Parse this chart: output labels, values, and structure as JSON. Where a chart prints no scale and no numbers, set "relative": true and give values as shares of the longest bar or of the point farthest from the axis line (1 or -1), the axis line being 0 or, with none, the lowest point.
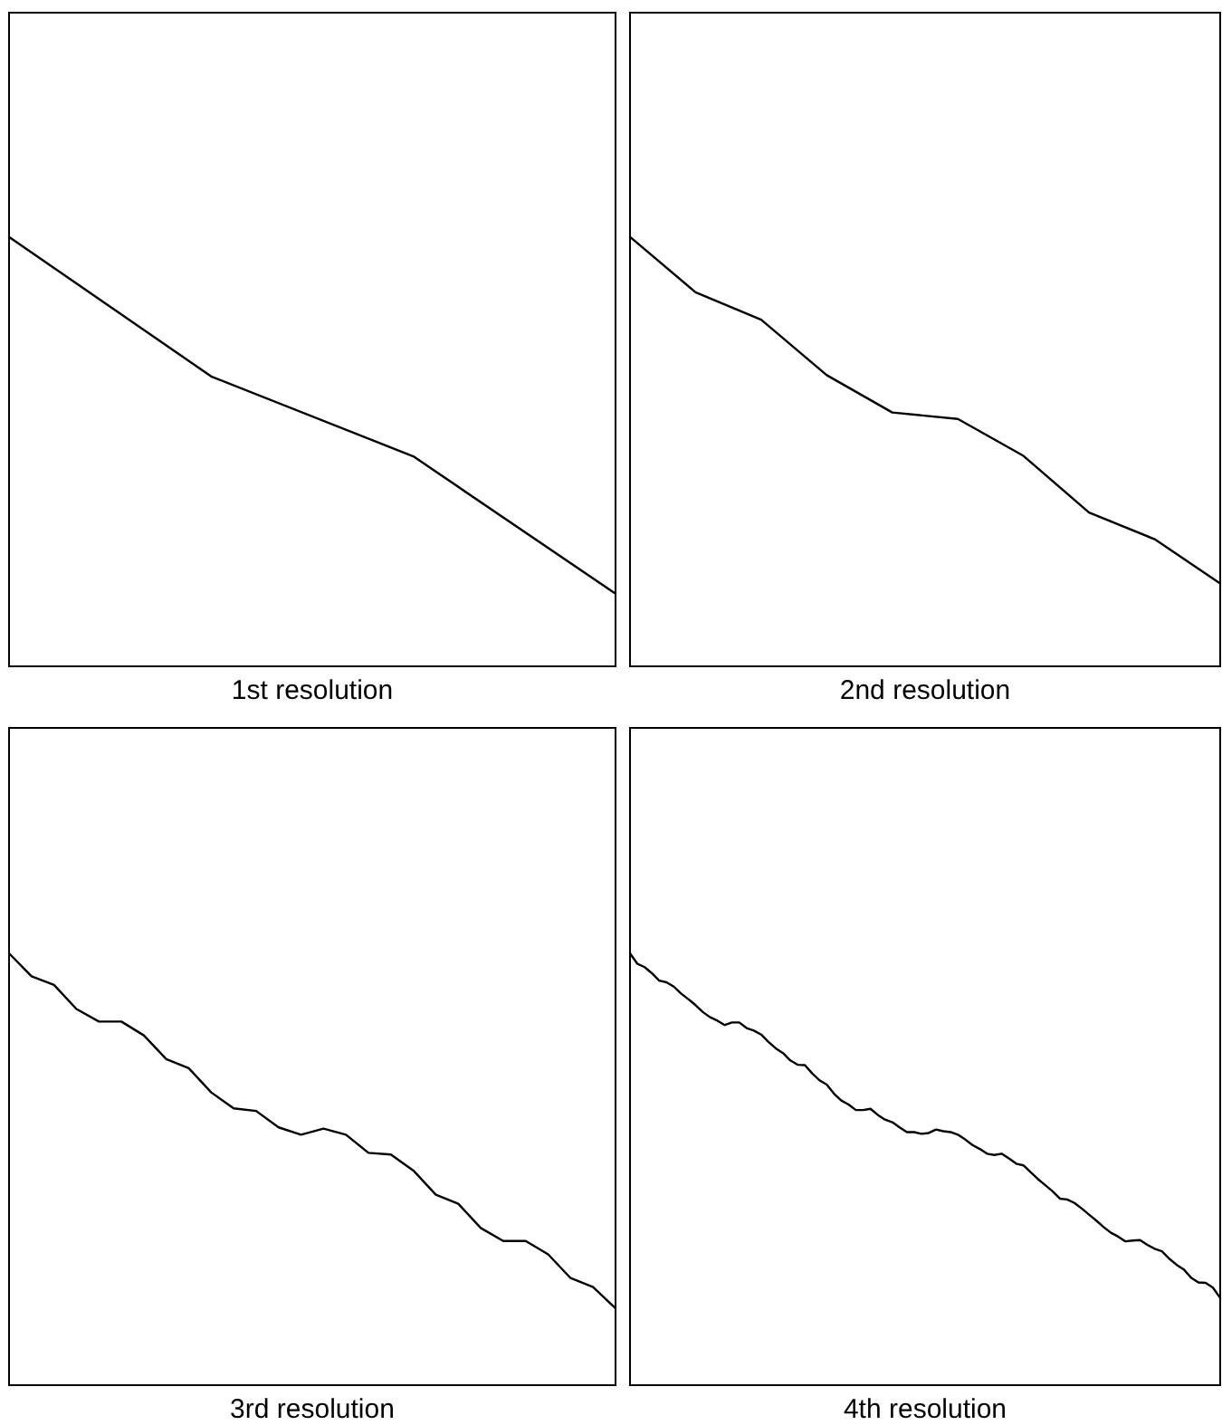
{
  "chart_data": [
    {
      "type": "line",
      "xlabel": "1st resolution",
      "relative": true,
      "categories": [
        null,
        null,
        null,
        null
      ],
      "series": [
        {
          "color": "#000000",
          "values": [
            1,
            0.675,
            0.489,
            0.169
          ]
        }
      ]
    },
    {
      "type": "line",
      "xlabel": "2nd resolution",
      "relative": true,
      "categories": [
        null,
        null,
        null,
        null,
        null,
        null,
        null,
        null,
        null,
        null
      ],
      "series": [
        {
          "color": "#000000",
          "values": [
            1,
            0.871,
            0.807,
            0.678,
            0.591,
            0.576,
            0.49,
            0.358,
            0.296,
            0.193
          ]
        }
      ]
    },
    {
      "type": "line",
      "xlabel": "3rd resolution",
      "relative": true,
      "categories": [
        null,
        null,
        null,
        null,
        null,
        null,
        null,
        null,
        null,
        null,
        null,
        null,
        null,
        null,
        null,
        null,
        null,
        null,
        null,
        null,
        null,
        null,
        null,
        null,
        null,
        null,
        null,
        null
      ],
      "series": [
        {
          "color": "#000000",
          "values": [
            1,
            0.947,
            0.927,
            0.871,
            0.842,
            0.842,
            0.81,
            0.755,
            0.734,
            0.678,
            0.641,
            0.635,
            0.597,
            0.58,
            0.594,
            0.58,
            0.538,
            0.534,
            0.497,
            0.441,
            0.42,
            0.364,
            0.334,
            0.334,
            0.303,
            0.248,
            0.227,
            0.178
          ]
        }
      ]
    },
    {
      "type": "line",
      "xlabel": "4th resolution",
      "relative": true,
      "categories": [
        null,
        null,
        null,
        null,
        null,
        null,
        null,
        null,
        null,
        null,
        null,
        null,
        null,
        null,
        null,
        null,
        null,
        null,
        null,
        null,
        null,
        null,
        null,
        null,
        null,
        null,
        null,
        null,
        null,
        null,
        null,
        null,
        null,
        null,
        null,
        null,
        null,
        null,
        null,
        null,
        null,
        null,
        null,
        null,
        null,
        null,
        null,
        null,
        null,
        null,
        null,
        null,
        null,
        null,
        null,
        null,
        null,
        null,
        null,
        null,
        null,
        null,
        null,
        null,
        null,
        null,
        null,
        null,
        null,
        null,
        null,
        null,
        null,
        null,
        null,
        null,
        null,
        null,
        null,
        null,
        null,
        null
      ],
      "series": [
        {
          "color": "#000000",
          "values": [
            1,
            0.976,
            0.968,
            0.954,
            0.937,
            0.933,
            0.923,
            0.907,
            0.894,
            0.88,
            0.864,
            0.852,
            0.844,
            0.834,
            0.84,
            0.84,
            0.827,
            0.821,
            0.812,
            0.795,
            0.78,
            0.769,
            0.752,
            0.742,
            0.741,
            0.722,
            0.706,
            0.696,
            0.675,
            0.659,
            0.65,
            0.637,
            0.637,
            0.64,
            0.626,
            0.615,
            0.609,
            0.597,
            0.586,
            0.586,
            0.582,
            0.584,
            0.592,
            0.588,
            0.586,
            0.58,
            0.569,
            0.556,
            0.547,
            0.536,
            0.533,
            0.536,
            0.525,
            0.513,
            0.509,
            0.493,
            0.477,
            0.463,
            0.449,
            0.432,
            0.43,
            0.422,
            0.409,
            0.395,
            0.381,
            0.366,
            0.353,
            0.344,
            0.333,
            0.335,
            0.336,
            0.325,
            0.316,
            0.31,
            0.293,
            0.279,
            0.268,
            0.249,
            0.238,
            0.237,
            0.226,
            0.202
          ]
        }
      ]
    }
  ]
}
